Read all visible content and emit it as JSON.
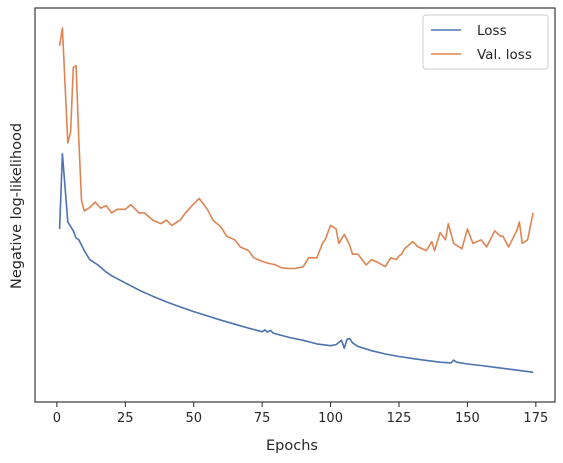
{
  "chart_data": {
    "type": "line",
    "xlabel": "Epochs",
    "ylabel": "Negative log-likelihood",
    "xlim": [
      -8,
      182
    ],
    "ylim": [
      0,
      100
    ],
    "xticks": [
      0,
      25,
      50,
      75,
      100,
      125,
      150,
      175
    ],
    "yticks_shown": false,
    "grid": false,
    "legend_position": "top-right",
    "series": [
      {
        "name": "Loss",
        "color": "#4c72b0",
        "x": [
          1,
          2,
          4,
          6,
          7,
          8,
          10,
          12,
          15,
          18,
          20,
          25,
          30,
          35,
          40,
          45,
          50,
          55,
          60,
          65,
          70,
          75,
          76,
          77,
          78,
          79,
          80,
          85,
          90,
          95,
          100,
          102,
          104,
          105,
          106,
          107,
          108,
          110,
          115,
          120,
          125,
          130,
          135,
          140,
          144,
          145,
          146,
          150,
          155,
          160,
          165,
          170,
          174
        ],
        "y": [
          44,
          65,
          46,
          43.5,
          41.5,
          41,
          38,
          35.5,
          34,
          32,
          31,
          29,
          27,
          25.3,
          23.7,
          22.3,
          21,
          19.8,
          18.6,
          17.5,
          16.4,
          15.4,
          15.9,
          15.3,
          15.8,
          15.0,
          14.8,
          13.8,
          13,
          12,
          11.5,
          11.8,
          13.0,
          10.8,
          13.3,
          13.5,
          12.3,
          11.3,
          10.1,
          9.2,
          8.5,
          7.9,
          7.4,
          6.9,
          6.7,
          7.5,
          6.9,
          6.4,
          6.0,
          5.5,
          5.0,
          4.5,
          4.1
        ]
      },
      {
        "name": "Val. loss",
        "color": "#dd8452",
        "x": [
          1,
          2,
          4,
          5,
          6,
          7,
          8,
          9,
          10,
          12,
          14,
          16,
          18,
          20,
          22,
          25,
          27,
          30,
          32,
          35,
          38,
          40,
          42,
          45,
          47,
          50,
          52,
          55,
          57,
          60,
          62,
          65,
          67,
          70,
          72,
          75,
          77,
          80,
          82,
          85,
          87,
          90,
          92,
          95,
          97,
          98,
          100,
          102,
          103,
          105,
          107,
          108,
          110,
          112,
          113,
          115,
          117,
          120,
          122,
          124,
          125,
          126,
          127,
          130,
          132,
          135,
          137,
          138,
          140,
          142,
          143,
          145,
          147,
          148,
          150,
          152,
          155,
          157,
          160,
          162,
          163,
          165,
          168,
          169,
          170,
          172,
          174
        ],
        "y": [
          95,
          100,
          68,
          71,
          89,
          89.5,
          69,
          52,
          49,
          50,
          51.5,
          49.8,
          50.5,
          48.5,
          49.5,
          49.5,
          50.8,
          48.5,
          48.5,
          46.5,
          45.5,
          46.5,
          45,
          46.5,
          48.5,
          51,
          52.5,
          49.5,
          46.5,
          44.5,
          42,
          41,
          39,
          38,
          36,
          35,
          34.5,
          34,
          33.2,
          33,
          33,
          33.5,
          36,
          36,
          40,
          41,
          45,
          44,
          40,
          42.5,
          39.5,
          37,
          37,
          35,
          34,
          35.5,
          34.8,
          33.5,
          36,
          35.5,
          36.5,
          37,
          38.5,
          40.5,
          39,
          38,
          40.5,
          38,
          43,
          41,
          45.5,
          40,
          39,
          38.5,
          44,
          40,
          41,
          39,
          43.5,
          42,
          42,
          39,
          43.5,
          46,
          40,
          41,
          48.5
        ]
      }
    ]
  }
}
